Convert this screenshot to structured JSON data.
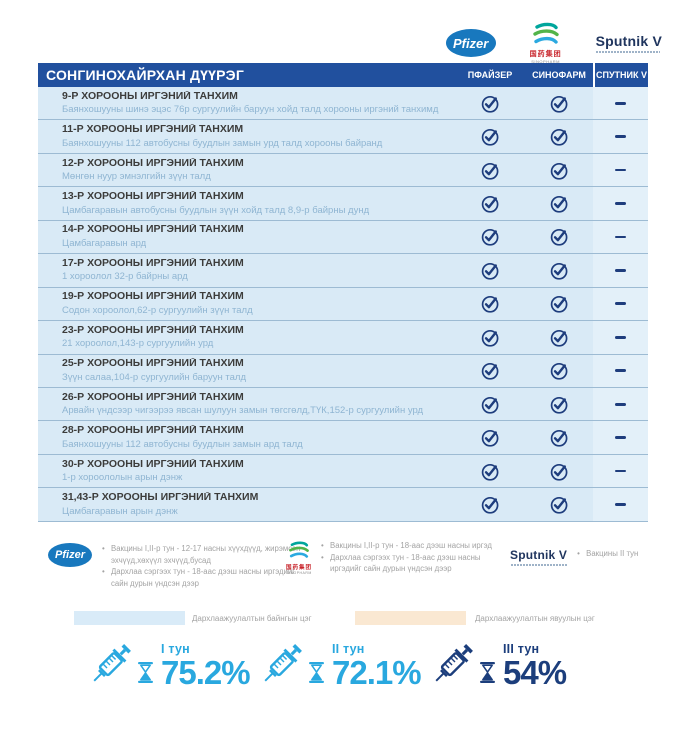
{
  "logos": {
    "pfizer": "Pfizer",
    "sinopharm_cn": "国药集团",
    "sinopharm_en": "SINOPHARM",
    "sputnik": "Sputnik V"
  },
  "table": {
    "title": "СОНГИНОХАЙРХАН ДҮҮРЭГ",
    "columns": [
      "ПФАЙЗЕР",
      "СИНОФАРМ",
      "СПУТНИК V"
    ],
    "rows": [
      {
        "name": "9-Р ХОРООНЫ ИРГЭНИЙ ТАНХИМ",
        "location": "Баянхошууны шинэ эцэс 76р сургуулийн баруун хойд талд хорооны иргэний танхимд",
        "pfizer": true,
        "sinopharm": true,
        "sputnik": false
      },
      {
        "name": "11-Р ХОРООНЫ ИРГЭНИЙ ТАНХИМ",
        "location": "Баянхошууны 112 автобусны буудлын замын урд талд хорооны байранд",
        "pfizer": true,
        "sinopharm": true,
        "sputnik": false
      },
      {
        "name": "12-Р ХОРООНЫ ИРГЭНИЙ ТАНХИМ",
        "location": "Мөнгөн нуур эмнэлгийн зүүн талд",
        "pfizer": true,
        "sinopharm": true,
        "sputnik": false
      },
      {
        "name": "13-Р ХОРООНЫ ИРГЭНИЙ ТАНХИМ",
        "location": "Цамбагаравын автобусны буудлын зүүн хойд талд 8,9-р байрны дунд",
        "pfizer": true,
        "sinopharm": true,
        "sputnik": false
      },
      {
        "name": "14-Р ХОРООНЫ ИРГЭНИЙ ТАНХИМ",
        "location": "Цамбагаравын ард",
        "pfizer": true,
        "sinopharm": true,
        "sputnik": false
      },
      {
        "name": "17-Р ХОРООНЫ ИРГЭНИЙ ТАНХИМ",
        "location": "1 хороолол 32-р байрны ард",
        "pfizer": true,
        "sinopharm": true,
        "sputnik": false
      },
      {
        "name": "19-Р ХОРООНЫ ИРГЭНИЙ ТАНХИМ",
        "location": "Содон хороолол,62-р сургуулийн зүүн талд",
        "pfizer": true,
        "sinopharm": true,
        "sputnik": false
      },
      {
        "name": "23-Р ХОРООНЫ ИРГЭНИЙ ТАНХИМ",
        "location": "21 хороолол,143-р сургуулийн урд",
        "pfizer": true,
        "sinopharm": true,
        "sputnik": false
      },
      {
        "name": "25-Р ХОРООНЫ ИРГЭНИЙ ТАНХИМ",
        "location": "Зүүн салаа,104-р сургуулийн баруун талд",
        "pfizer": true,
        "sinopharm": true,
        "sputnik": false
      },
      {
        "name": "26-Р ХОРООНЫ ИРГЭНИЙ ТАНХИМ",
        "location": "Арвайн үндсээр чигээрээ явсан шулуун замын төгсгөлд,ТҮК,152-р сургуулийн урд",
        "pfizer": true,
        "sinopharm": true,
        "sputnik": false
      },
      {
        "name": "28-Р ХОРООНЫ ИРГЭНИЙ ТАНХИМ",
        "location": "Баянхошууны 112 автобусны буудлын замын ард талд",
        "pfizer": true,
        "sinopharm": true,
        "sputnik": false
      },
      {
        "name": "30-Р ХОРООНЫ ИРГЭНИЙ ТАНХИМ",
        "location": "1-р хороололын арын дэнж",
        "pfizer": true,
        "sinopharm": true,
        "sputnik": false
      },
      {
        "name": "31,43-Р ХОРООНЫ ИРГЭНИЙ ТАНХИМ",
        "location": "Цамбагаравын арын дэнж",
        "pfizer": true,
        "sinopharm": true,
        "sputnik": false
      }
    ]
  },
  "vaccine_legend": {
    "pfizer": [
      "Вакцины I,II-р тун - 12-17 насны хүүхдүүд, жирэмсэн эхчүүд,хөхүүл эхчүүд,бусад",
      "Дархлаа сэргээх тун - 18-аас дээш насны иргэдийг сайн дурын үндсэн дээр"
    ],
    "sinopharm": [
      "Вакцины I,II-р тун - 18-аас дээш насны иргэд",
      "Дархлаа сэргээх тун - 18-аас дээш насны иргэдийг сайн дурын үндсэн дээр"
    ],
    "sputnik": [
      "Вакцины II тун"
    ]
  },
  "point_legend": [
    {
      "label": "Дархлаажуулалтын байнгын цэг",
      "color": "#D9EBF8"
    },
    {
      "label": "Дархлаажуулалтын явуулын цэг",
      "color": "#FAE8D2"
    }
  ],
  "stats": [
    {
      "dose": "I тун",
      "percent": "75.2%",
      "color": "#29A8DF"
    },
    {
      "dose": "II тун",
      "percent": "72.1%",
      "color": "#29A8DF"
    },
    {
      "dose": "III тун",
      "percent": "54%",
      "color": "#1C3E7C"
    }
  ],
  "colors": {
    "header_blue": "#21509E",
    "row_bg": "#D9EAF6",
    "check_navy": "#1E3D7D"
  }
}
